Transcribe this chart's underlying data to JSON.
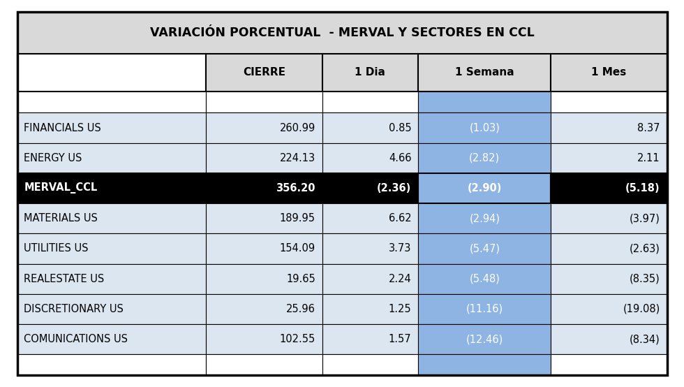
{
  "title": "VARIACIÓN PORCENTUAL  - MERVAL Y SECTORES EN CCL",
  "col_headers": [
    "",
    "CIERRE",
    "1 Dia",
    "1 Semana",
    "1 Mes"
  ],
  "rows": [
    {
      "label": "FINANCIALS US",
      "cierre": "260.99",
      "dia": "0.85",
      "semana": "(1.03)",
      "mes": "8.37",
      "merval": false
    },
    {
      "label": "ENERGY US",
      "cierre": "224.13",
      "dia": "4.66",
      "semana": "(2.82)",
      "mes": "2.11",
      "merval": false
    },
    {
      "label": "MERVAL_CCL",
      "cierre": "356.20",
      "dia": "(2.36)",
      "semana": "(2.90)",
      "mes": "(5.18)",
      "merval": true
    },
    {
      "label": "MATERIALS US",
      "cierre": "189.95",
      "dia": "6.62",
      "semana": "(2.94)",
      "mes": "(3.97)",
      "merval": false
    },
    {
      "label": "UTILITIES US",
      "cierre": "154.09",
      "dia": "3.73",
      "semana": "(5.47)",
      "mes": "(2.63)",
      "merval": false
    },
    {
      "label": "REALESTATE US",
      "cierre": "19.65",
      "dia": "2.24",
      "semana": "(5.48)",
      "mes": "(8.35)",
      "merval": false
    },
    {
      "label": "DISCRETIONARY US",
      "cierre": "25.96",
      "dia": "1.25",
      "semana": "(11.16)",
      "mes": "(19.08)",
      "merval": false
    },
    {
      "label": "COMUNICATIONS US",
      "cierre": "102.55",
      "dia": "1.57",
      "semana": "(12.46)",
      "mes": "(8.34)",
      "merval": false
    }
  ],
  "colors": {
    "title_bg": "#d9d9d9",
    "header_col0_bg": "#ffffff",
    "header_cols_bg": "#d9d9d9",
    "merval_bg": "#000000",
    "merval_text": "#ffffff",
    "semana_highlight": "#8db4e2",
    "data_row_bg": "#dce6f1",
    "empty_row_bg": "#ffffff",
    "border": "#000000"
  },
  "figsize": [
    9.8,
    5.54
  ],
  "dpi": 100
}
